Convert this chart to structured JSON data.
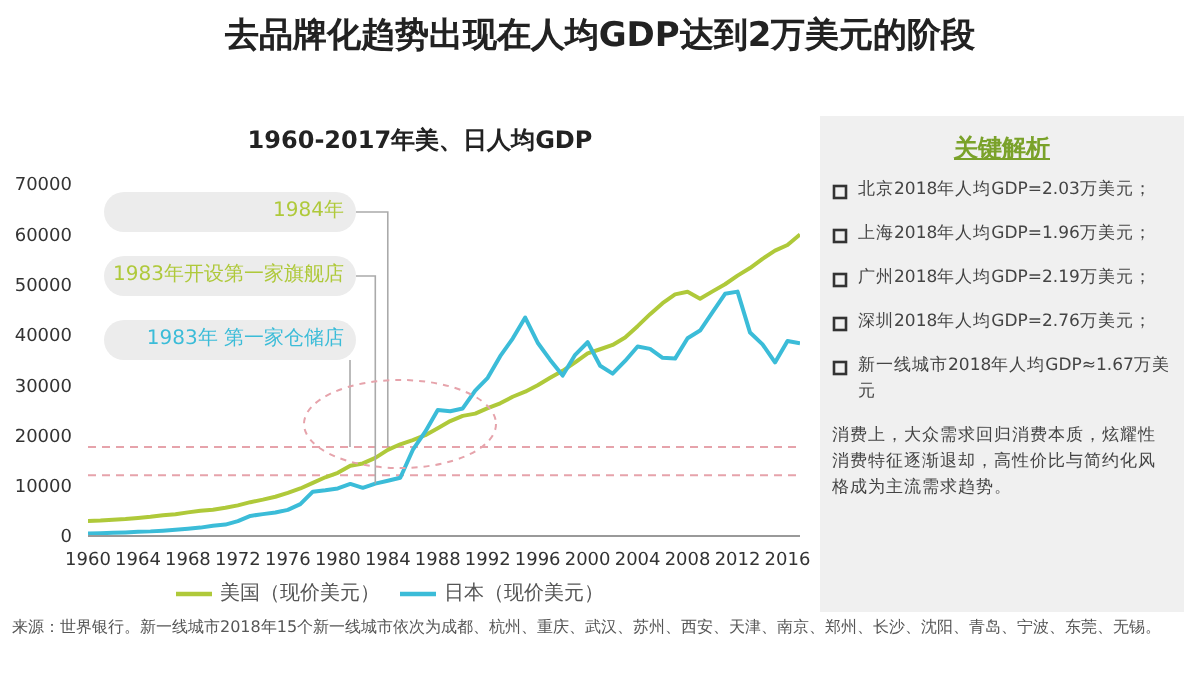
{
  "chart_data": [
    {
      "type": "line",
      "title": "去品牌化趋势出现在人均GDP达到2万美元的阶段",
      "subtitle": "1960-2017年美、日人均GDP",
      "x": [
        1960,
        1961,
        1962,
        1963,
        1964,
        1965,
        1966,
        1967,
        1968,
        1969,
        1970,
        1971,
        1972,
        1973,
        1974,
        1975,
        1976,
        1977,
        1978,
        1979,
        1980,
        1981,
        1982,
        1983,
        1984,
        1985,
        1986,
        1987,
        1988,
        1989,
        1990,
        1991,
        1992,
        1993,
        1994,
        1995,
        1996,
        1997,
        1998,
        1999,
        2000,
        2001,
        2002,
        2003,
        2004,
        2005,
        2006,
        2007,
        2008,
        2009,
        2010,
        2011,
        2012,
        2013,
        2014,
        2015,
        2016,
        2017
      ],
      "series": [
        {
          "name": "美国（现价美元）",
          "color": "#afc93a",
          "values": [
            3007,
            3067,
            3244,
            3375,
            3574,
            3828,
            4146,
            4336,
            4696,
            5032,
            5234,
            5609,
            6094,
            6726,
            7226,
            7801,
            8592,
            9453,
            10565,
            11674,
            12575,
            13976,
            14434,
            15544,
            17121,
            18237,
            19071,
            20039,
            21417,
            22857,
            23889,
            24342,
            25419,
            26387,
            27695,
            28691,
            29968,
            31459,
            32854,
            34516,
            36330,
            37134,
            37998,
            39490,
            41725,
            44115,
            46299,
            48050,
            48570,
            47195,
            48651,
            50066,
            51784,
            53291,
            55124,
            56763,
            57867,
            59958
          ]
        },
        {
          "name": "日本（现价美元）",
          "color": "#3bbcd8",
          "values": [
            479,
            564,
            634,
            718,
            836,
            920,
            1059,
            1229,
            1450,
            1669,
            2037,
            2272,
            2967,
            3997,
            4354,
            4659,
            5198,
            6335,
            8821,
            9105,
            9463,
            10361,
            9578,
            10425,
            10979,
            11585,
            17113,
            20745,
            25051,
            24813,
            25359,
            28925,
            31465,
            35766,
            39269,
            43440,
            38437,
            35022,
            31903,
            36027,
            38532,
            33846,
            32289,
            34808,
            37688,
            37218,
            35434,
            35275,
            39339,
            40855,
            44508,
            48168,
            48603,
            40454,
            38109,
            34524,
            38794,
            38332
          ]
        }
      ],
      "xlim": [
        1960,
        2017
      ],
      "xticks": [
        1960,
        1964,
        1968,
        1972,
        1976,
        1980,
        1984,
        1988,
        1992,
        1996,
        2000,
        2004,
        2008,
        2012,
        2016
      ],
      "ylim": [
        0,
        70000
      ],
      "yticks": [
        0,
        10000,
        20000,
        30000,
        40000,
        50000,
        60000,
        70000
      ],
      "ref_lines": [
        {
          "axis": "y",
          "value": 17700,
          "color": "#e6a3ab",
          "line_style": "dashed"
        },
        {
          "axis": "y",
          "value": 12100,
          "color": "#e6a3ab",
          "line_style": "dashed"
        }
      ],
      "annotations": [
        {
          "text": "1984年",
          "x": 1984,
          "y": 17700
        },
        {
          "text": "1983年开设第一家旗舰店",
          "x": 1983,
          "y": 10425
        },
        {
          "text": "1983年 第一家仓储店",
          "x": 1981,
          "y": 17700
        },
        "来源：世界银行。新一线城市2018年15个新一线城市依次为成都、杭州、重庆、武汉、苏州、西安、天津、南京、郑州、长沙、沈阳、青岛、宁波、东莞、无锡。"
      ],
      "legend": "bottom",
      "grid": false
    },
    {
      "type": "other",
      "title": "关键解析",
      "annotations": [
        "北京2018年人均GDP=2.03万美元；",
        "上海2018年人均GDP=1.96万美元；",
        "广州2018年人均GDP=2.19万美元；",
        "深圳2018年人均GDP=2.76万美元；",
        "新一线城市2018年人均GDP≈1.67万美元",
        "消费上，大众需求回归消费本质，炫耀性消费特征逐渐退却，高性价比与简约化风格成为主流需求趋势。"
      ]
    }
  ]
}
